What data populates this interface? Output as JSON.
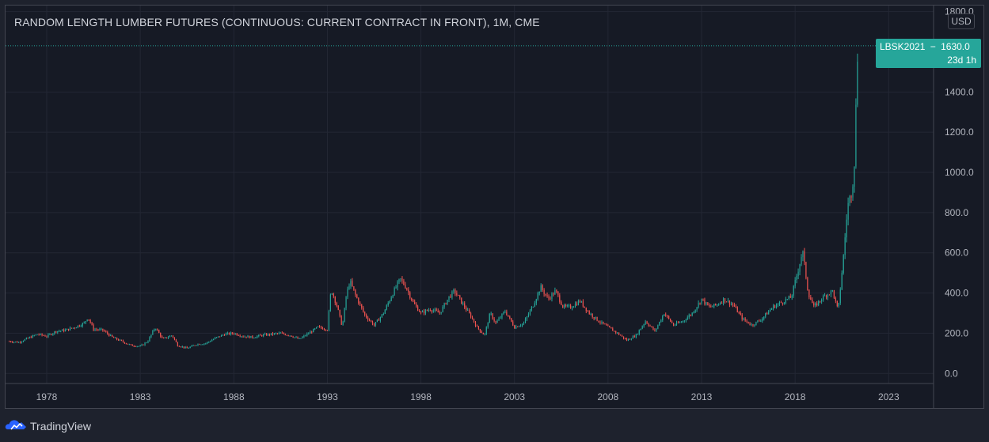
{
  "title": "RANDOM LENGTH LUMBER FUTURES (CONTINUOUS: CURRENT CONTRACT IN FRONT), 1M, CME",
  "currency_badge": "USD",
  "last_price_label": {
    "symbol": "LBSK2021",
    "separator": "−",
    "price": "1630.0",
    "countdown": "23d 1h"
  },
  "branding": {
    "name": "TradingView",
    "icon": "tradingview-cloud-logo"
  },
  "colors": {
    "background": "#161a25",
    "grid": "#232734",
    "up": "#26a69a",
    "down": "#ef5350",
    "axis_text": "#b2b5be",
    "last_price_line": "#26a69a"
  },
  "chart_data": {
    "type": "candlestick",
    "interval": "1M",
    "exchange": "CME",
    "x_tick_labels": [
      "1978",
      "1983",
      "1988",
      "1993",
      "1998",
      "2003",
      "2008",
      "2013",
      "2018",
      "2023"
    ],
    "y_tick_labels": [
      "0.0",
      "200.0",
      "400.0",
      "600.0",
      "800.0",
      "1000.0",
      "1200.0",
      "1400.0",
      "1800.0"
    ],
    "xlim": [
      1975.8,
      2025.4
    ],
    "ylim": [
      -50,
      1830
    ],
    "grid": true,
    "last_price": 1630.0,
    "series": [
      {
        "name": "LBSK2021",
        "points": [
          [
            1976.0,
            160
          ],
          [
            1976.5,
            155
          ],
          [
            1977.0,
            175
          ],
          [
            1977.5,
            195
          ],
          [
            1978.0,
            185
          ],
          [
            1978.5,
            210
          ],
          [
            1979.0,
            215
          ],
          [
            1979.5,
            230
          ],
          [
            1980.0,
            250
          ],
          [
            1980.2,
            280
          ],
          [
            1980.5,
            220
          ],
          [
            1981.0,
            215
          ],
          [
            1981.5,
            180
          ],
          [
            1982.0,
            160
          ],
          [
            1982.5,
            140
          ],
          [
            1983.0,
            135
          ],
          [
            1983.4,
            160
          ],
          [
            1983.8,
            230
          ],
          [
            1984.2,
            170
          ],
          [
            1984.7,
            190
          ],
          [
            1985.0,
            140
          ],
          [
            1985.5,
            125
          ],
          [
            1986.0,
            145
          ],
          [
            1986.5,
            150
          ],
          [
            1987.0,
            175
          ],
          [
            1987.5,
            195
          ],
          [
            1988.0,
            200
          ],
          [
            1988.5,
            185
          ],
          [
            1989.0,
            180
          ],
          [
            1989.5,
            190
          ],
          [
            1990.0,
            195
          ],
          [
            1990.5,
            200
          ],
          [
            1991.0,
            190
          ],
          [
            1991.5,
            170
          ],
          [
            1992.0,
            200
          ],
          [
            1992.5,
            230
          ],
          [
            1993.0,
            220
          ],
          [
            1993.2,
            420
          ],
          [
            1993.5,
            340
          ],
          [
            1993.8,
            230
          ],
          [
            1994.0,
            380
          ],
          [
            1994.2,
            460
          ],
          [
            1994.5,
            390
          ],
          [
            1995.0,
            290
          ],
          [
            1995.5,
            240
          ],
          [
            1996.0,
            300
          ],
          [
            1996.5,
            400
          ],
          [
            1996.9,
            470
          ],
          [
            1997.2,
            430
          ],
          [
            1997.6,
            350
          ],
          [
            1998.0,
            300
          ],
          [
            1998.5,
            320
          ],
          [
            1999.0,
            300
          ],
          [
            1999.5,
            380
          ],
          [
            1999.8,
            410
          ],
          [
            2000.2,
            350
          ],
          [
            2000.7,
            280
          ],
          [
            2001.0,
            230
          ],
          [
            2001.4,
            190
          ],
          [
            2001.7,
            300
          ],
          [
            2002.0,
            250
          ],
          [
            2002.5,
            310
          ],
          [
            2003.0,
            230
          ],
          [
            2003.5,
            250
          ],
          [
            2004.0,
            340
          ],
          [
            2004.4,
            430
          ],
          [
            2004.8,
            370
          ],
          [
            2005.2,
            410
          ],
          [
            2005.6,
            330
          ],
          [
            2006.0,
            330
          ],
          [
            2006.5,
            360
          ],
          [
            2007.0,
            300
          ],
          [
            2007.5,
            260
          ],
          [
            2008.0,
            230
          ],
          [
            2008.5,
            200
          ],
          [
            2009.0,
            165
          ],
          [
            2009.5,
            190
          ],
          [
            2010.0,
            260
          ],
          [
            2010.5,
            210
          ],
          [
            2011.0,
            300
          ],
          [
            2011.5,
            240
          ],
          [
            2012.0,
            260
          ],
          [
            2012.5,
            300
          ],
          [
            2013.0,
            370
          ],
          [
            2013.4,
            330
          ],
          [
            2013.8,
            340
          ],
          [
            2014.2,
            370
          ],
          [
            2014.7,
            340
          ],
          [
            2015.2,
            270
          ],
          [
            2015.7,
            240
          ],
          [
            2016.2,
            270
          ],
          [
            2016.8,
            330
          ],
          [
            2017.2,
            350
          ],
          [
            2017.8,
            380
          ],
          [
            2018.2,
            530
          ],
          [
            2018.4,
            610
          ],
          [
            2018.7,
            400
          ],
          [
            2019.0,
            330
          ],
          [
            2019.5,
            380
          ],
          [
            2020.0,
            410
          ],
          [
            2020.3,
            310
          ],
          [
            2020.6,
            600
          ],
          [
            2020.8,
            830
          ],
          [
            2021.0,
            900
          ],
          [
            2021.15,
            1000
          ],
          [
            2021.25,
            1320
          ],
          [
            2021.35,
            1630
          ]
        ]
      }
    ]
  }
}
